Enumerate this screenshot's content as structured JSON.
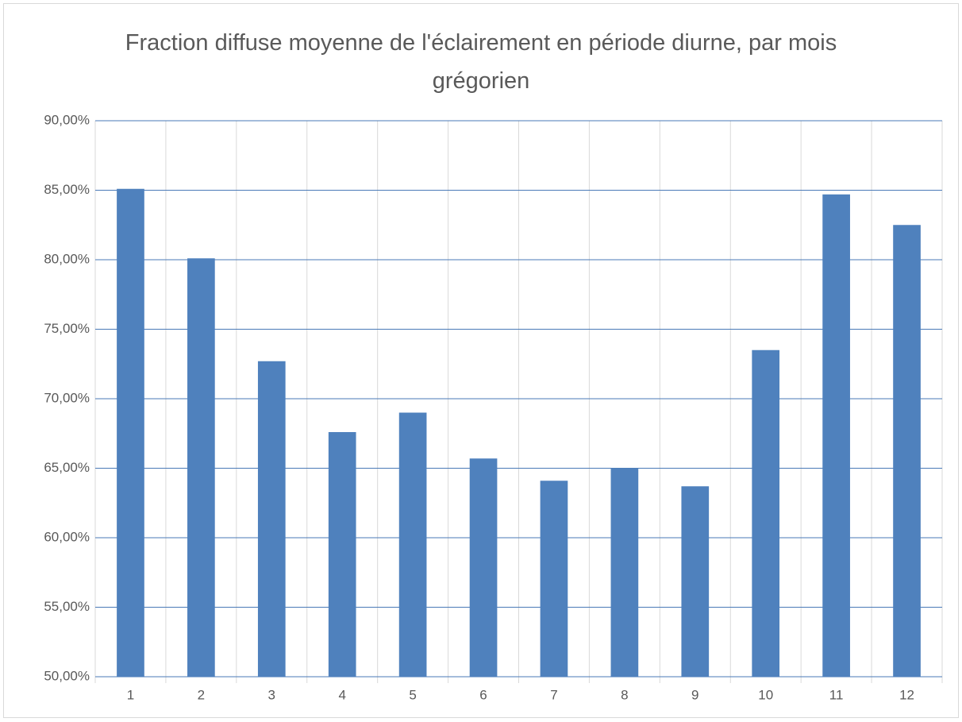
{
  "chart_data": {
    "type": "bar",
    "title": "Fraction diffuse moyenne de l'éclairement en période diurne, par mois grégorien",
    "categories": [
      "1",
      "2",
      "3",
      "4",
      "5",
      "6",
      "7",
      "8",
      "9",
      "10",
      "11",
      "12"
    ],
    "values": [
      85.1,
      80.1,
      72.7,
      67.6,
      69.0,
      65.7,
      64.1,
      65.0,
      63.7,
      73.5,
      84.7,
      82.5
    ],
    "color": "#4f81bd",
    "ylim": [
      50,
      90
    ],
    "yticks": [
      {
        "value": 50,
        "label": "50,00%"
      },
      {
        "value": 55,
        "label": "55,00%"
      },
      {
        "value": 60,
        "label": "60,00%"
      },
      {
        "value": 65,
        "label": "65,00%"
      },
      {
        "value": 70,
        "label": "70,00%"
      },
      {
        "value": 75,
        "label": "75,00%"
      },
      {
        "value": 80,
        "label": "80,00%"
      },
      {
        "value": 85,
        "label": "85,00%"
      },
      {
        "value": 90,
        "label": "90,00%"
      }
    ],
    "grid": true
  }
}
